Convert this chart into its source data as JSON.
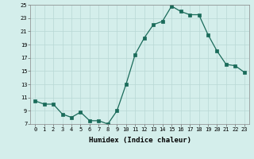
{
  "x": [
    0,
    1,
    2,
    3,
    4,
    5,
    6,
    7,
    8,
    9,
    10,
    11,
    12,
    13,
    14,
    15,
    16,
    17,
    18,
    19,
    20,
    21,
    22,
    23
  ],
  "y": [
    10.5,
    10.0,
    10.0,
    8.5,
    8.0,
    8.8,
    7.5,
    7.5,
    7.0,
    9.0,
    13.0,
    17.5,
    20.0,
    22.0,
    22.5,
    24.8,
    24.0,
    23.5,
    23.5,
    20.5,
    18.0,
    16.0,
    15.8,
    14.8
  ],
  "xlabel": "Humidex (Indice chaleur)",
  "ylim": [
    7,
    25
  ],
  "xlim": [
    -0.5,
    23.5
  ],
  "yticks": [
    7,
    9,
    11,
    13,
    15,
    17,
    19,
    21,
    23,
    25
  ],
  "xticks": [
    0,
    1,
    2,
    3,
    4,
    5,
    6,
    7,
    8,
    9,
    10,
    11,
    12,
    13,
    14,
    15,
    16,
    17,
    18,
    19,
    20,
    21,
    22,
    23
  ],
  "line_color": "#1a6b5a",
  "marker": "s",
  "marker_size": 2.2,
  "bg_color": "#d4eeeb",
  "grid_color": "#b8d8d5",
  "axes_bg": "#d4eeeb",
  "tick_fontsize": 5.0,
  "xlabel_fontsize": 6.5,
  "line_width": 0.9
}
